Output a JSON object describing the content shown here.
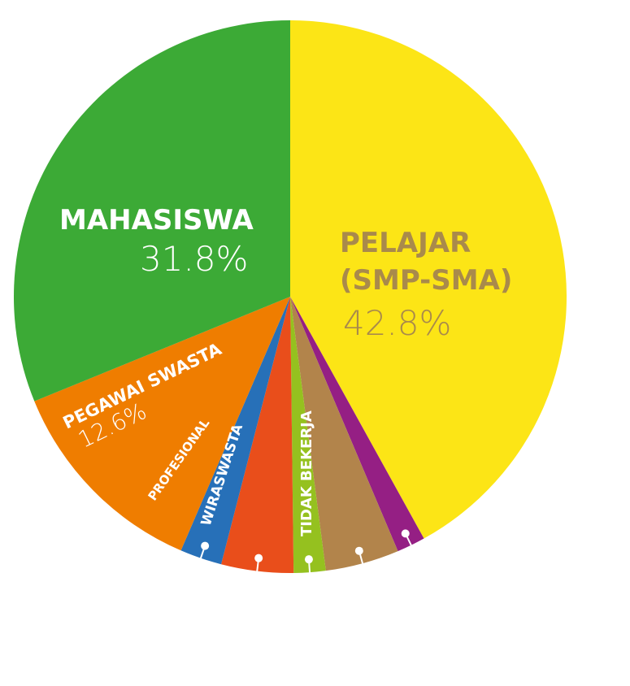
{
  "chart_data": {
    "type": "pie",
    "slices": [
      {
        "key": "pelajar",
        "label_lines": [
          "PELAJAR",
          "(SMP-SMA)"
        ],
        "value": 42.8,
        "value_label": "42.8%",
        "color": "#FCE516"
      },
      {
        "key": "purple",
        "label_lines": [],
        "value": 1.7,
        "value_label": "",
        "color": "#951F84"
      },
      {
        "key": "tidak-bekerja",
        "label_lines": [
          "TIDAK BEKERJA"
        ],
        "value": 4.4,
        "value_label": "",
        "color": "#B2844B"
      },
      {
        "key": "lime",
        "label_lines": [],
        "value": 1.9,
        "value_label": "",
        "color": "#95C11F"
      },
      {
        "key": "wiraswasta",
        "label_lines": [
          "WIRASWASTA"
        ],
        "value": 4.3,
        "value_label": "",
        "color": "#E94E1B"
      },
      {
        "key": "profesional",
        "label_lines": [
          "PROFESIONAL"
        ],
        "value": 2.5,
        "value_label": "",
        "color": "#2770B8"
      },
      {
        "key": "pegawai-swasta",
        "label_lines": [
          "PEGAWAI SWASTA"
        ],
        "value": 12.6,
        "value_label": "12.6%",
        "color": "#EF7D00"
      },
      {
        "key": "mahasiswa",
        "label_lines": [
          "MAHASISWA"
        ],
        "value": 31.8,
        "value_label": "31.8%",
        "color": "#3CAA36"
      }
    ]
  },
  "colors": {
    "pelajar_text": "#A98A4B",
    "white_text": "#FFFFFF"
  }
}
